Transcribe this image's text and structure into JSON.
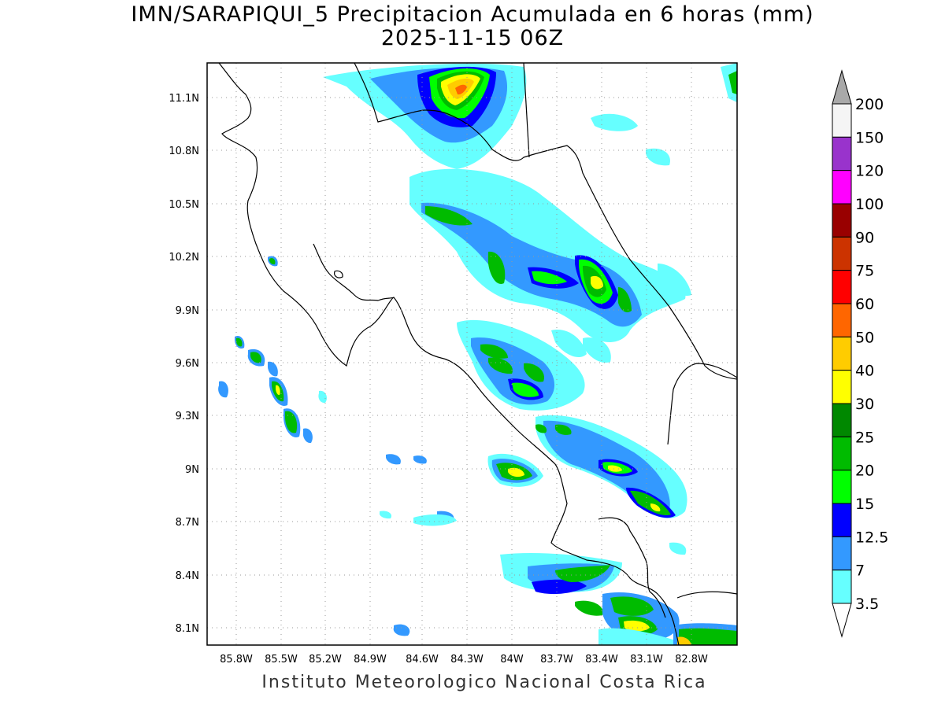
{
  "title_line1": "IMN/SARAPIQUI_5 Precipitacion Acumulada en 6 horas (mm)",
  "title_line2": "2025-11-15 06Z",
  "footer": "Instituto Meteorologico Nacional Costa Rica",
  "lon_ticks": [
    "85.8W",
    "85.5W",
    "85.2W",
    "84.9W",
    "84.6W",
    "84.3W",
    "84W",
    "83.7W",
    "83.4W",
    "83.1W",
    "82.8W"
  ],
  "lat_ticks": [
    "11.1N",
    "10.8N",
    "10.5N",
    "10.2N",
    "9.9N",
    "9.6N",
    "9.3N",
    "9N",
    "8.7N",
    "8.4N",
    "8.1N"
  ],
  "colorbar": {
    "labels": [
      "200",
      "150",
      "120",
      "100",
      "90",
      "75",
      "60",
      "50",
      "40",
      "30",
      "25",
      "20",
      "15",
      "12.5",
      "7",
      "3.5"
    ],
    "colors": [
      "#f5f5f5",
      "#9933cc",
      "#ff00ff",
      "#990000",
      "#cc3300",
      "#ff0000",
      "#ff6600",
      "#ffcc00",
      "#ffff00",
      "#008800",
      "#00bb00",
      "#00ff00",
      "#0000ff",
      "#3399ff",
      "#66ffff"
    ],
    "over_color": "#a9a9a9",
    "under_color": "#ffffff"
  }
}
